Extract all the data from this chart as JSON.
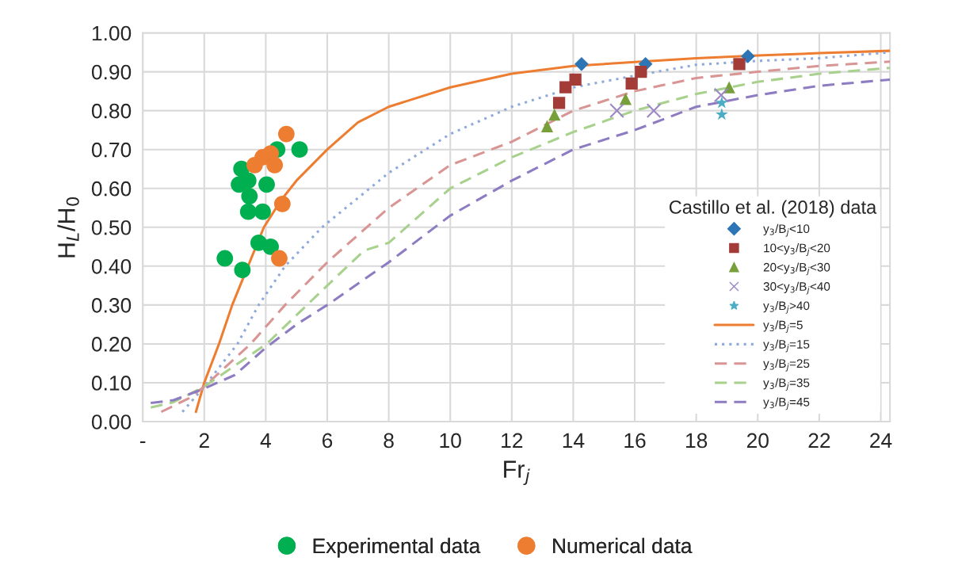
{
  "chart_data": {
    "type": "scatter",
    "xlabel": "Fr$_{j}$",
    "ylabel": "H$_{L}$/H$_{0}$",
    "legend_title": "Castillo et al. (2018) data",
    "xlim": [
      0,
      24.3
    ],
    "ylim": [
      0,
      1.0
    ],
    "xticks": [
      {
        "value": 0,
        "label": "-"
      },
      2,
      4,
      6,
      8,
      10,
      12,
      14,
      16,
      18,
      20,
      22,
      24
    ],
    "yticks": [
      {
        "value": 0,
        "label": "0.00"
      },
      {
        "value": 0.1,
        "label": "0.10"
      },
      {
        "value": 0.2,
        "label": "0.20"
      },
      {
        "value": 0.3,
        "label": "0.30"
      },
      {
        "value": 0.4,
        "label": "0.40"
      },
      {
        "value": 0.5,
        "label": "0.50"
      },
      {
        "value": 0.6,
        "label": "0.60"
      },
      {
        "value": 0.7,
        "label": "0.70"
      },
      {
        "value": 0.8,
        "label": "0.80"
      },
      {
        "value": 0.9,
        "label": "0.90"
      },
      {
        "value": 1.0,
        "label": "1.00"
      }
    ],
    "grid": true,
    "legend": "bottom",
    "series": [
      {
        "name": "Experimental data",
        "marker": "circle",
        "color": "#00b050",
        "x": [
          5.1,
          4.37,
          3.21,
          3.13,
          3.43,
          4.03,
          3.47,
          3.43,
          3.9,
          3.77,
          4.16,
          2.67,
          3.24
        ],
        "values": [
          0.7,
          0.7,
          0.65,
          0.61,
          0.62,
          0.61,
          0.58,
          0.54,
          0.54,
          0.46,
          0.45,
          0.42,
          0.39
        ]
      },
      {
        "name": "Numerical data",
        "marker": "circle",
        "color": "#ed7d31",
        "x": [
          4.67,
          3.64,
          3.9,
          4.16,
          4.29,
          4.54,
          4.44
        ],
        "values": [
          0.74,
          0.66,
          0.68,
          0.69,
          0.66,
          0.56,
          0.42
        ]
      },
      {
        "name": "y$_{3}$/B$_{j}$<10",
        "marker": "diamond",
        "color": "#2e75b6",
        "x": [
          14.27,
          16.35,
          19.68
        ],
        "values": [
          0.92,
          0.92,
          0.94
        ]
      },
      {
        "name": "10<y$_{3}$/B$_{j}$<20",
        "marker": "square",
        "color": "#a33b36",
        "x": [
          13.54,
          13.75,
          14.07,
          15.9,
          16.2,
          19.4
        ],
        "values": [
          0.82,
          0.86,
          0.88,
          0.87,
          0.9,
          0.92
        ]
      },
      {
        "name": "20<y$_{3}$/B$_{j}$<30",
        "marker": "triangle",
        "color": "#77a03a",
        "x": [
          13.15,
          13.39,
          15.7,
          19.07
        ],
        "values": [
          0.76,
          0.79,
          0.83,
          0.86
        ]
      },
      {
        "name": "30<y$_{3}$/B$_{j}$<40",
        "marker": "cross",
        "color": "#9b87c4",
        "x": [
          15.42,
          16.62,
          18.81
        ],
        "values": [
          0.8,
          0.8,
          0.84
        ]
      },
      {
        "name": "y$_{3}$/B$_{j}$>40",
        "marker": "star",
        "color": "#4bacc6",
        "x": [
          18.83,
          18.83
        ],
        "values": [
          0.82,
          0.79
        ]
      },
      {
        "name": "y$_{3}$/B$_{j}$=5",
        "type": "line",
        "line_style": "solid",
        "color": "#ed7d31",
        "x": [
          1.73,
          2.0,
          2.48,
          2.91,
          3.94,
          4.5,
          5.0,
          6.0,
          7.0,
          8.0,
          10.0,
          12.0,
          14.0,
          16.0,
          18.0,
          20.0,
          22.0,
          24.3
        ],
        "values": [
          0.025,
          0.1,
          0.2,
          0.3,
          0.5,
          0.57,
          0.62,
          0.7,
          0.77,
          0.81,
          0.86,
          0.895,
          0.915,
          0.925,
          0.935,
          0.942,
          0.948,
          0.954
        ]
      },
      {
        "name": "y$_{3}$/B$_{j}$=15",
        "type": "line",
        "line_style": "dotted",
        "color": "#8eaadb",
        "x": [
          1.29,
          2.0,
          3.08,
          3.77,
          4.63,
          5.83,
          8.0,
          10.0,
          12.0,
          14.0,
          16.0,
          18.0,
          20.0,
          22.0,
          24.3
        ],
        "values": [
          0.025,
          0.09,
          0.2,
          0.3,
          0.4,
          0.5,
          0.64,
          0.74,
          0.81,
          0.86,
          0.89,
          0.918,
          0.928,
          0.935,
          0.95
        ]
      },
      {
        "name": "y$_{3}$/B$_{j}$=25",
        "type": "line",
        "line_style": "dashed",
        "color": "#d99594",
        "x": [
          0.6,
          1.5,
          2.0,
          3.51,
          4.63,
          6.0,
          8.0,
          10.0,
          12.0,
          14.0,
          16.0,
          18.0,
          20.0,
          22.0,
          24.3
        ],
        "values": [
          0.025,
          0.06,
          0.09,
          0.2,
          0.3,
          0.41,
          0.55,
          0.66,
          0.72,
          0.8,
          0.85,
          0.884,
          0.9,
          0.915,
          0.926
        ]
      },
      {
        "name": "y$_{3}$/B$_{j}$=35",
        "type": "line",
        "line_style": "dashed",
        "color": "#a9d18e",
        "x": [
          0.26,
          1.0,
          2.0,
          4.03,
          6.0,
          7.2,
          8.0,
          10.0,
          12.0,
          14.0,
          16.0,
          18.0,
          20.0,
          22.0,
          24.3
        ],
        "values": [
          0.036,
          0.05,
          0.09,
          0.2,
          0.35,
          0.44,
          0.46,
          0.6,
          0.68,
          0.745,
          0.8,
          0.843,
          0.874,
          0.895,
          0.91
        ]
      },
      {
        "name": "y$_{3}$/B$_{j}$=45",
        "type": "line",
        "line_style": "dashed",
        "color": "#8e7cc3",
        "x": [
          0.26,
          1.0,
          2.0,
          3.0,
          4.0,
          5.0,
          6.0,
          8.0,
          10.0,
          12.0,
          14.0,
          16.0,
          18.0,
          20.0,
          22.0,
          24.3
        ],
        "values": [
          0.048,
          0.055,
          0.085,
          0.12,
          0.19,
          0.25,
          0.3,
          0.41,
          0.53,
          0.62,
          0.7,
          0.75,
          0.81,
          0.84,
          0.864,
          0.88
        ]
      }
    ]
  }
}
